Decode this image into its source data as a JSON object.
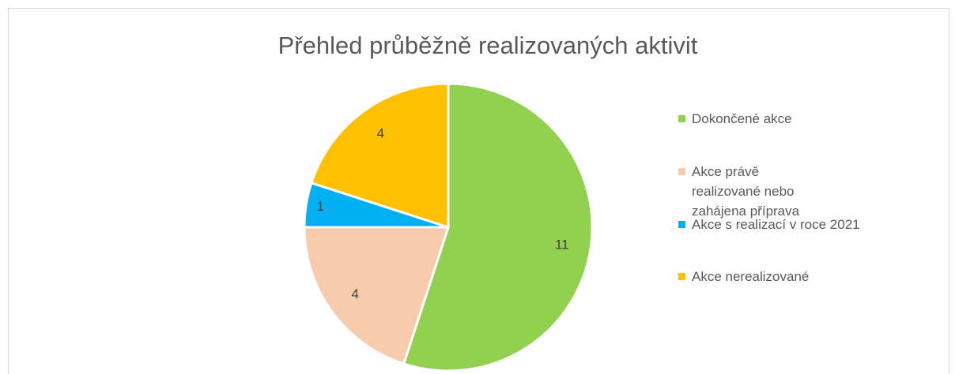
{
  "chart_data": {
    "type": "pie",
    "title": "Přehled průběžně realizovaných aktivit",
    "categories": [
      "Dokončené akce",
      "Akce právě realizované nebo zahájena příprava",
      "Akce s realizací v roce 2021",
      "Akce nerealizované"
    ],
    "values": [
      11,
      4,
      1,
      4
    ],
    "colors": [
      "#92d050",
      "#f8cbad",
      "#00b0f0",
      "#ffc000"
    ],
    "legend": "right"
  }
}
